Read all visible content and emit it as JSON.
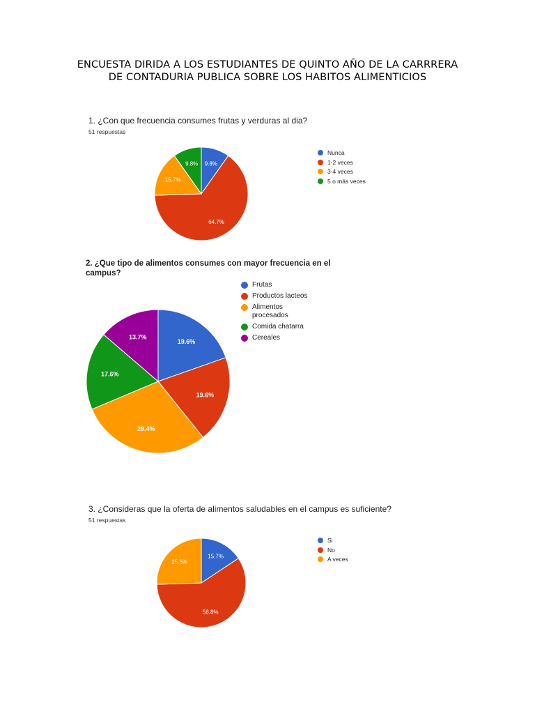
{
  "document": {
    "title_line1": "ENCUESTA DIRIDA A LOS ESTUDIANTES DE QUINTO AÑO DE LA CARRRERA",
    "title_line2": "DE CONTADURIA PUBLICA SOBRE LOS HABITOS ALIMENTICIOS"
  },
  "chart_data": [
    {
      "type": "pie",
      "title": "1. ¿Con que frecuencia consumes frutas y verduras al dia?",
      "subtitle": "51 respuestas",
      "categories": [
        "Nunca",
        "1-2 veces",
        "3-4 veces",
        "5 o más veces"
      ],
      "values": [
        9.8,
        64.7,
        15.7,
        9.8
      ],
      "labels": [
        "9.8%",
        "64.7%",
        "15.7%",
        "9.8%"
      ],
      "colors": [
        "#3366cc",
        "#dc3912",
        "#ff9900",
        "#109618"
      ],
      "legend": "right"
    },
    {
      "type": "pie",
      "title": "2. ¿Que tipo de alimentos consumes con mayor frecuencia en el campus?",
      "title_line1": "2. ¿Que tipo de alimentos consumes con mayor frecuencia en el",
      "title_line2": "campus?",
      "categories": [
        "Frutas",
        "Productos lacteos",
        "Alimentos procesados",
        "Comida chatarra",
        "Cereales"
      ],
      "legend_lines": [
        [
          "Frutas"
        ],
        [
          "Productos lacteos"
        ],
        [
          "Alimentos",
          "procesados"
        ],
        [
          "Comida chatarra"
        ],
        [
          "Cereales"
        ]
      ],
      "values": [
        19.6,
        19.6,
        29.4,
        17.6,
        13.7
      ],
      "labels": [
        "19.6%",
        "19.6%",
        "29.4%",
        "17.6%",
        "13.7%"
      ],
      "colors": [
        "#3366cc",
        "#dc3912",
        "#ff9900",
        "#109618",
        "#990099"
      ],
      "legend": "right"
    },
    {
      "type": "pie",
      "title": "3. ¿Consideras que la oferta de alimentos saludables en el campus es suficiente?",
      "subtitle": "51 respuestas",
      "categories": [
        "Si",
        "No",
        "A veces"
      ],
      "values": [
        15.7,
        58.8,
        25.5
      ],
      "labels": [
        "15.7%",
        "58.8%",
        "25.5%"
      ],
      "colors": [
        "#3366cc",
        "#dc3912",
        "#ff9900"
      ],
      "legend": "right"
    }
  ]
}
